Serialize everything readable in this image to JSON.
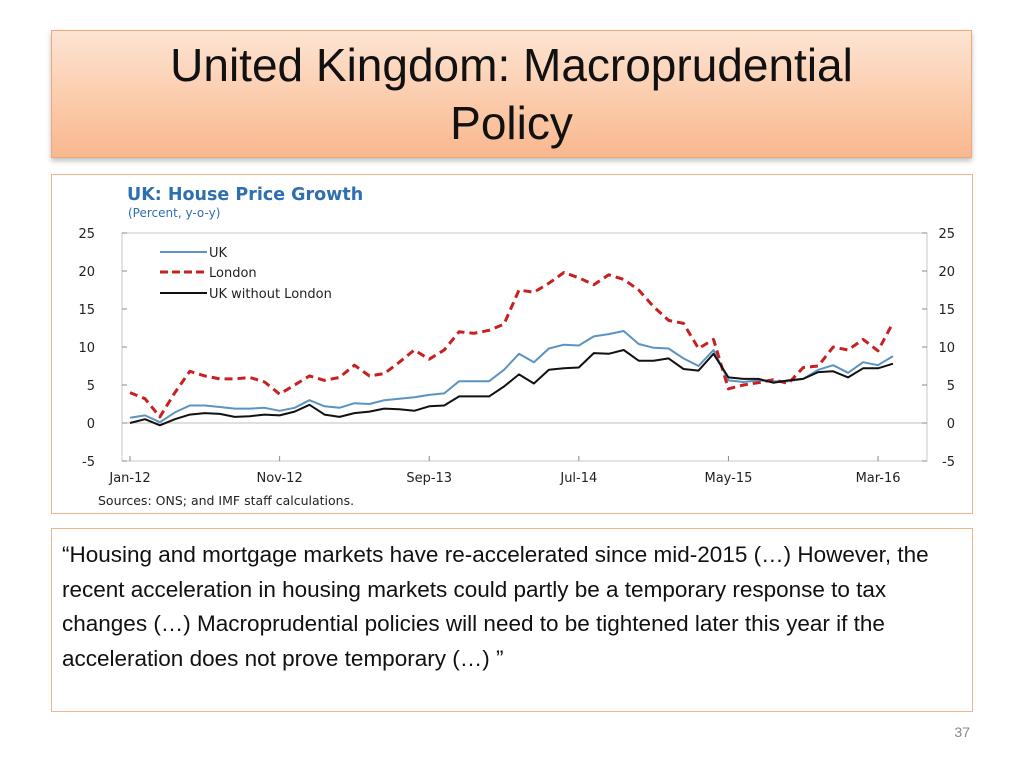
{
  "slide": {
    "title_lines": [
      "United Kingdom: Macroprudential",
      "Policy"
    ],
    "quote": "“Housing and mortgage markets have re-accelerated since mid-2015 (…) However, the recent acceleration in housing markets could partly be a temporary response to tax changes (…) Macroprudential policies will need to be tightened later this year if the acceleration does not prove temporary (…) ”",
    "page_number": "37"
  },
  "colors": {
    "title_gradient_top": "#fde4d3",
    "title_gradient_bottom": "#f8b88f",
    "box_border": "#f2b58b",
    "chart_title": "#2e6fb0"
  },
  "chart_data": {
    "type": "line",
    "title": "UK: House Price Growth",
    "subtitle": "(Percent, y-o-y)",
    "source": "Sources: ONS; and IMF staff calculations.",
    "xlabel": "",
    "ylabel": "",
    "ylim": [
      -5,
      25
    ],
    "y_ticks": [
      "25",
      "20",
      "15",
      "10",
      "5",
      "0",
      "-5"
    ],
    "x_tick_labels": [
      "Jan-12",
      "Nov-12",
      "Sep-13",
      "Jul-14",
      "May-15",
      "Mar-16"
    ],
    "x_start": "Jan-12",
    "x_end": "Mar-16",
    "grid": false,
    "legend_position": "top-left",
    "series": [
      {
        "name": "UK",
        "color": "#5b93c3",
        "dash": "solid",
        "values": [
          0.7,
          1.0,
          0.1,
          1.4,
          2.3,
          2.3,
          2.1,
          1.9,
          1.9,
          2.0,
          1.6,
          2.0,
          3.0,
          2.2,
          2.0,
          2.6,
          2.5,
          3.0,
          3.2,
          3.4,
          3.7,
          3.9,
          5.5,
          5.5,
          5.5,
          7.0,
          9.1,
          8.0,
          9.8,
          10.3,
          10.2,
          11.4,
          11.7,
          12.1,
          10.4,
          9.9,
          9.8,
          8.5,
          7.5,
          9.6,
          5.6,
          5.4,
          5.6,
          5.5,
          5.5,
          5.8,
          7.0,
          7.6,
          6.6,
          8.0,
          7.6,
          8.8
        ]
      },
      {
        "name": "London",
        "color": "#c8201f",
        "dash": "dashed",
        "values": [
          4.0,
          3.2,
          0.8,
          4.0,
          6.8,
          6.2,
          5.8,
          5.8,
          6.0,
          5.4,
          3.8,
          5.0,
          6.2,
          5.6,
          6.0,
          7.6,
          6.2,
          6.5,
          8.0,
          9.6,
          8.4,
          9.6,
          12.0,
          11.8,
          12.2,
          13.0,
          17.5,
          17.2,
          18.4,
          19.8,
          19.1,
          18.2,
          19.5,
          18.9,
          17.5,
          15.3,
          13.5,
          13.1,
          9.8,
          11.0,
          4.5,
          5.0,
          5.3,
          5.7,
          5.2,
          7.3,
          7.5,
          10.0,
          9.6,
          11.0,
          9.5,
          13.2
        ]
      },
      {
        "name": "UK without London",
        "color": "#111111",
        "dash": "solid",
        "values": [
          0.0,
          0.5,
          -0.3,
          0.5,
          1.1,
          1.3,
          1.2,
          0.8,
          0.9,
          1.1,
          1.0,
          1.5,
          2.4,
          1.1,
          0.8,
          1.3,
          1.5,
          1.9,
          1.8,
          1.6,
          2.2,
          2.3,
          3.5,
          3.5,
          3.5,
          4.8,
          6.4,
          5.2,
          7.0,
          7.2,
          7.3,
          9.2,
          9.1,
          9.6,
          8.2,
          8.2,
          8.5,
          7.1,
          6.9,
          9.1,
          6.0,
          5.8,
          5.8,
          5.3,
          5.6,
          5.8,
          6.7,
          6.8,
          6.0,
          7.2,
          7.2,
          7.8
        ]
      }
    ]
  }
}
